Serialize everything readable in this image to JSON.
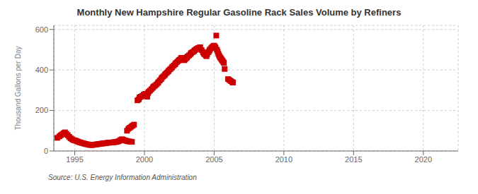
{
  "chart_data": {
    "type": "scatter",
    "title": "Monthly New Hampshire Regular Gasoline Rack Sales Volume by Refiners",
    "ylabel": "Thousand Gallons per Day",
    "source": "Source: U.S. Energy Information Administration",
    "color": "#cc0000",
    "marker": "square",
    "grid": true,
    "xlim": [
      1993.5,
      2022.5
    ],
    "xticks": [
      1995,
      2000,
      2005,
      2010,
      2015,
      2020
    ],
    "ylim": [
      0,
      620
    ],
    "yticks": [
      0,
      200,
      400,
      600
    ],
    "x": [
      1993.75,
      1993.9,
      1994.0,
      1994.1,
      1994.2,
      1994.3,
      1994.4,
      1994.5,
      1994.6,
      1994.7,
      1994.8,
      1994.9,
      1995.0,
      1995.1,
      1995.2,
      1995.3,
      1995.4,
      1995.5,
      1995.6,
      1995.7,
      1995.8,
      1995.9,
      1996.0,
      1996.1,
      1996.2,
      1996.3,
      1996.4,
      1996.5,
      1996.6,
      1996.7,
      1996.8,
      1996.9,
      1997.0,
      1997.1,
      1997.2,
      1997.3,
      1997.4,
      1997.5,
      1997.6,
      1997.7,
      1997.8,
      1997.9,
      1998.0,
      1998.1,
      1998.2,
      1998.3,
      1998.4,
      1998.5,
      1998.6,
      1998.7,
      1998.8,
      1998.9,
      1999.0,
      1999.1,
      1998.75,
      1998.85,
      1998.95,
      1999.05,
      1999.15,
      1999.25,
      1999.5,
      1999.6,
      1999.65,
      1999.75,
      1999.85,
      1999.95,
      2000.05,
      2000.1,
      2000.2,
      2000.25,
      2000.3,
      2000.4,
      2000.5,
      2000.6,
      2000.65,
      2000.75,
      2000.85,
      2000.95,
      2001.0,
      2001.1,
      2001.2,
      2001.25,
      2001.35,
      2001.45,
      2001.5,
      2001.6,
      2001.7,
      2001.75,
      2001.85,
      2001.95,
      2002.0,
      2002.1,
      2002.2,
      2002.25,
      2002.35,
      2002.45,
      2002.5,
      2002.6,
      2002.65,
      2002.7,
      2002.8,
      2002.85,
      2002.9,
      2003.0,
      2003.05,
      2003.1,
      2003.2,
      2003.3,
      2003.35,
      2003.45,
      2003.55,
      2003.6,
      2003.7,
      2003.8,
      2003.85,
      2003.95,
      2004.0,
      2004.1,
      2004.2,
      2004.25,
      2004.3,
      2004.4,
      2004.45,
      2004.5,
      2004.6,
      2004.65,
      2004.7,
      2004.8,
      2004.85,
      2004.9,
      2004.95,
      2005.0,
      2005.05,
      2005.1,
      2005.15,
      2005.2,
      2005.25,
      2005.3,
      2005.35,
      2005.4,
      2005.45,
      2005.5,
      2005.55,
      2005.6,
      2005.65,
      2005.7,
      2005.75,
      2006.0,
      2006.1,
      2006.2,
      2006.3,
      2006.35
    ],
    "values": [
      65,
      72,
      78,
      82,
      88,
      92,
      85,
      78,
      70,
      63,
      58,
      54,
      52,
      50,
      47,
      44,
      42,
      40,
      38,
      36,
      34,
      33,
      31,
      30,
      29,
      30,
      31,
      32,
      33,
      34,
      35,
      36,
      37,
      38,
      38,
      40,
      41,
      41,
      42,
      42,
      43,
      44,
      45,
      47,
      50,
      55,
      58,
      55,
      52,
      50,
      48,
      47,
      46,
      45,
      100,
      110,
      115,
      120,
      125,
      130,
      250,
      255,
      265,
      268,
      272,
      278,
      282,
      275,
      268,
      285,
      292,
      298,
      305,
      312,
      318,
      322,
      328,
      335,
      340,
      348,
      355,
      362,
      368,
      374,
      380,
      386,
      392,
      398,
      404,
      410,
      416,
      422,
      428,
      434,
      440,
      446,
      450,
      455,
      460,
      455,
      450,
      448,
      452,
      458,
      462,
      467,
      472,
      478,
      484,
      488,
      492,
      497,
      502,
      505,
      508,
      510,
      512,
      498,
      488,
      482,
      478,
      472,
      468,
      478,
      488,
      495,
      502,
      508,
      512,
      515,
      518,
      520,
      515,
      510,
      570,
      500,
      490,
      480,
      472,
      465,
      460,
      455,
      450,
      445,
      440,
      435,
      405,
      355,
      350,
      345,
      340,
      338
    ]
  }
}
